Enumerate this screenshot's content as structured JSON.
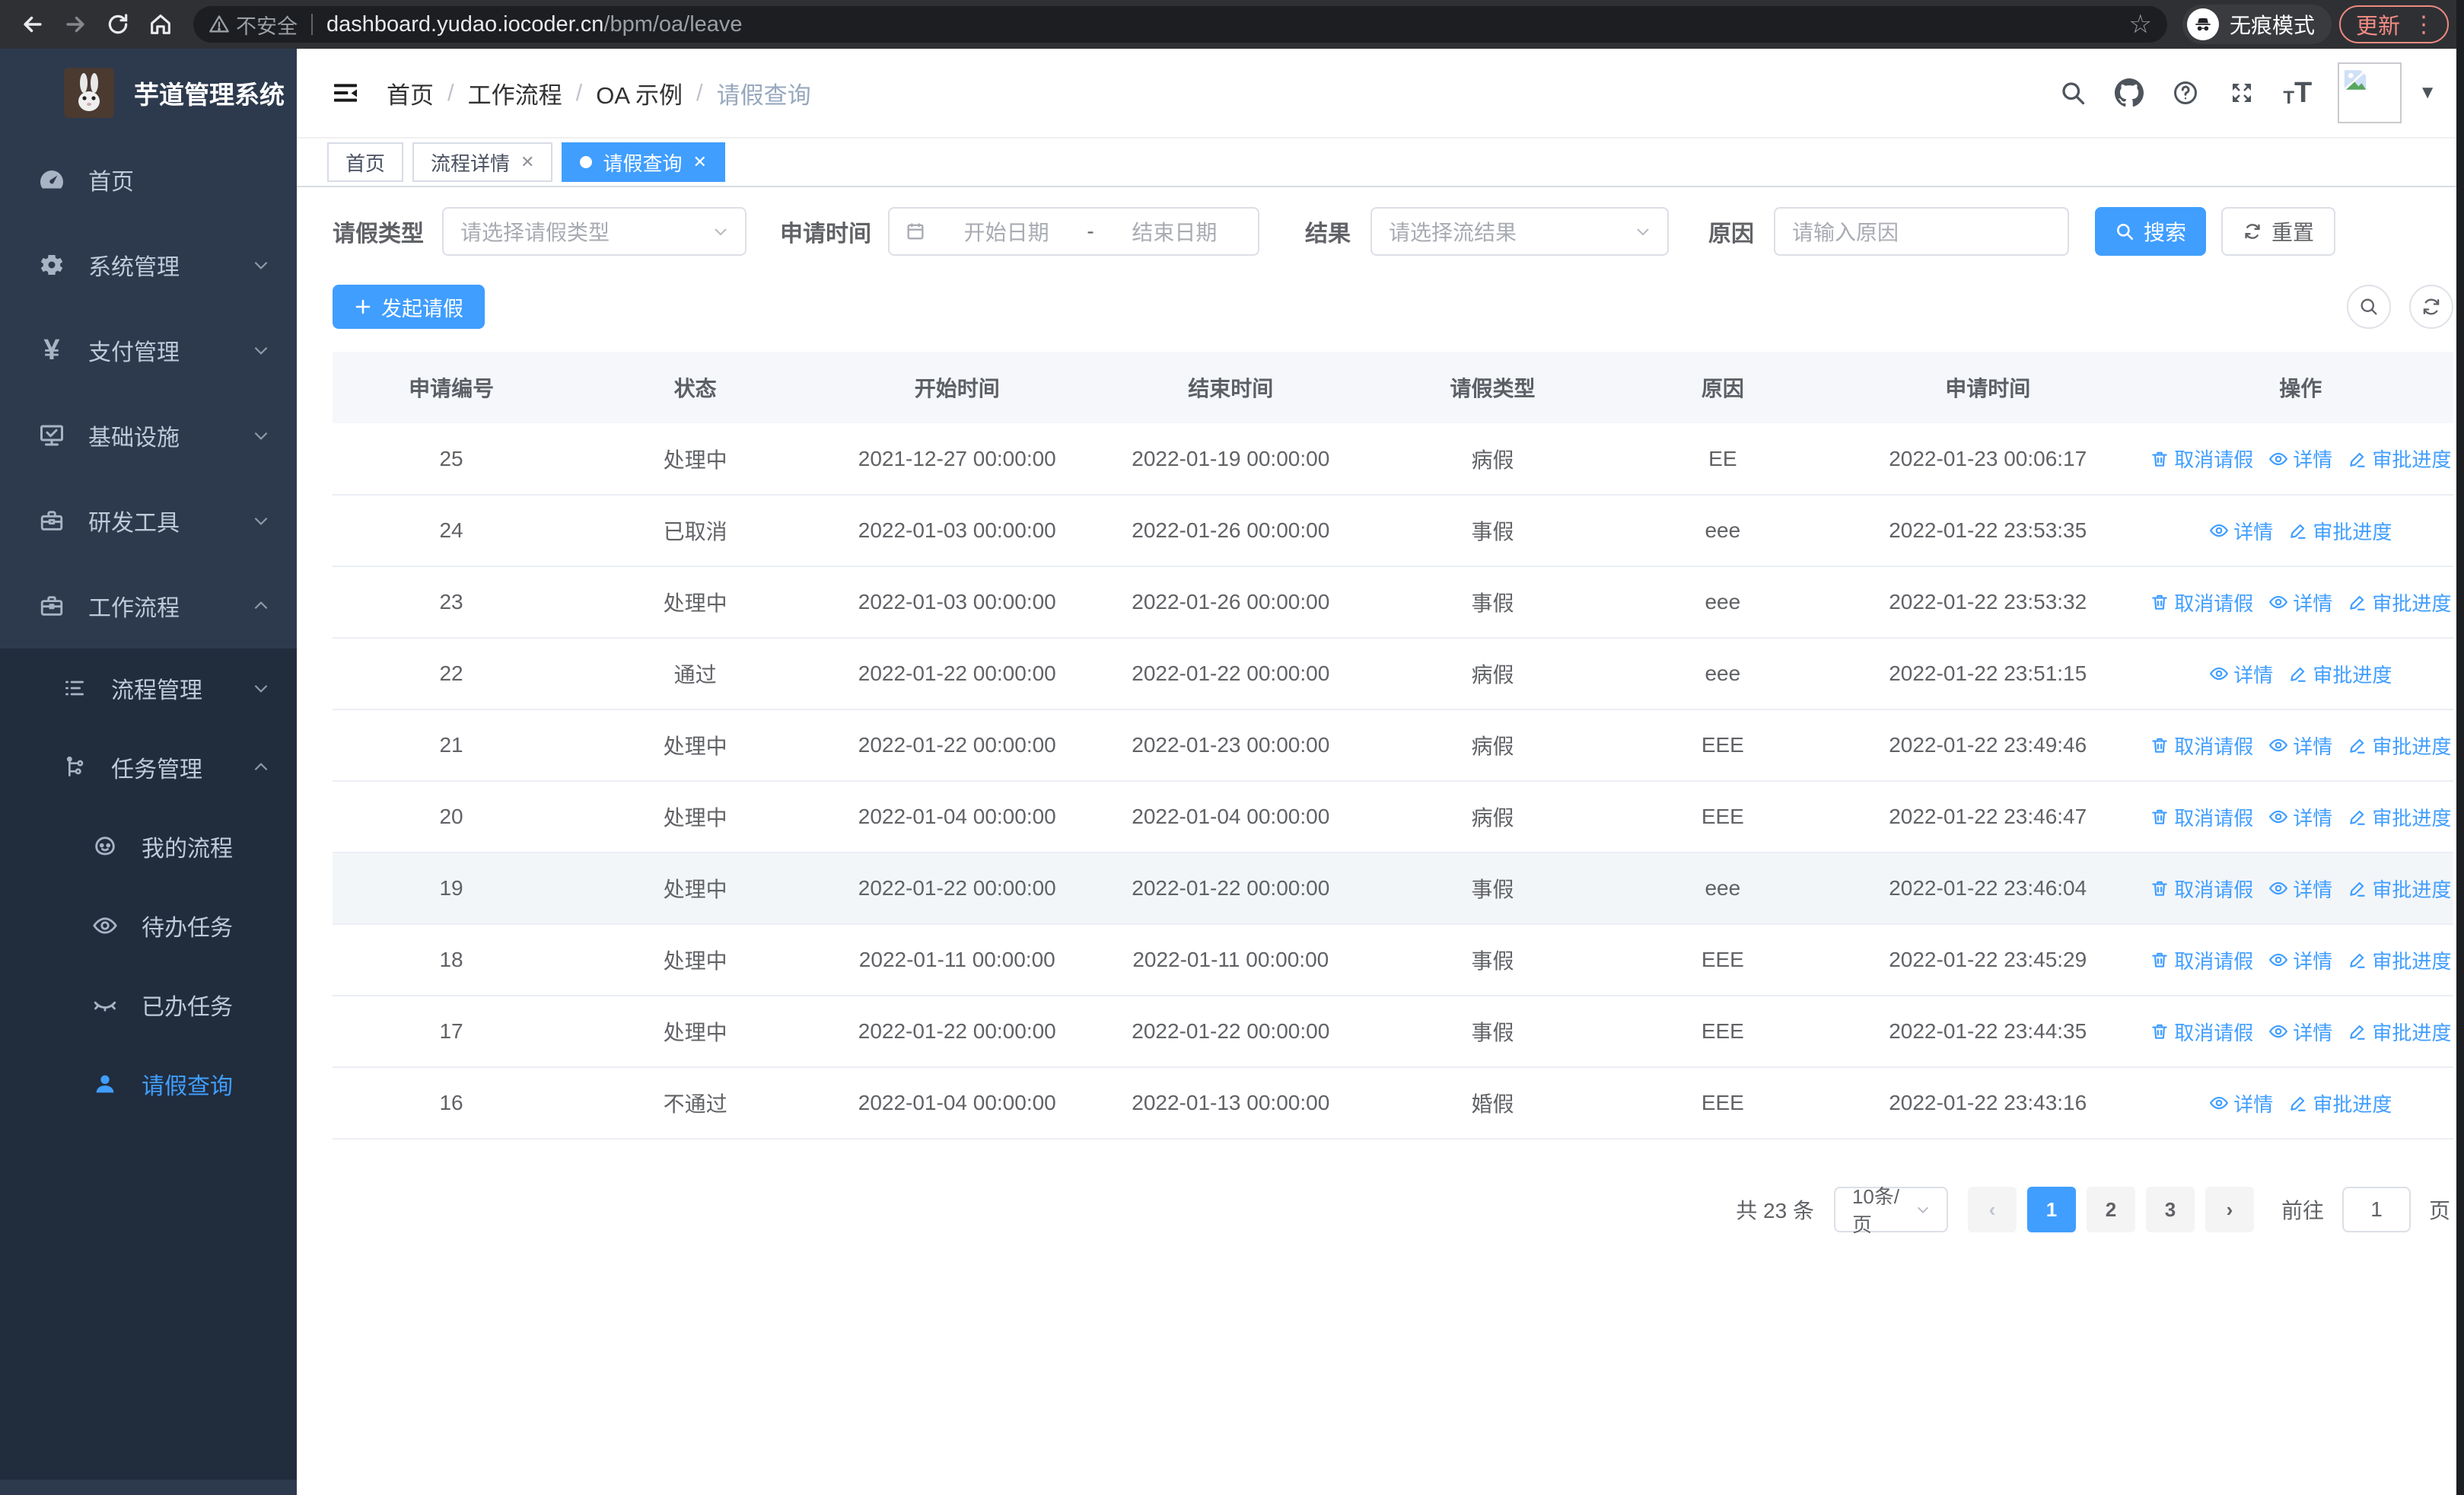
{
  "browser": {
    "security_label": "不安全",
    "url_host": "dashboard.yudao.iocoder.cn",
    "url_path": "/bpm/oa/leave",
    "incognito_label": "无痕模式",
    "update_label": "更新"
  },
  "sidebar": {
    "title": "芋道管理系统",
    "items": [
      {
        "label": "首页"
      },
      {
        "label": "系统管理"
      },
      {
        "label": "支付管理"
      },
      {
        "label": "基础设施"
      },
      {
        "label": "研发工具"
      },
      {
        "label": "工作流程"
      }
    ],
    "submenu": [
      {
        "label": "流程管理"
      },
      {
        "label": "任务管理"
      }
    ],
    "task_items": [
      {
        "label": "我的流程"
      },
      {
        "label": "待办任务"
      },
      {
        "label": "已办任务"
      },
      {
        "label": "请假查询"
      }
    ]
  },
  "header": {
    "breadcrumb": [
      "首页",
      "工作流程",
      "OA 示例",
      "请假查询"
    ]
  },
  "tabs": [
    {
      "label": "首页"
    },
    {
      "label": "流程详情"
    },
    {
      "label": "请假查询"
    }
  ],
  "filters": {
    "leave_type_label": "请假类型",
    "leave_type_placeholder": "请选择请假类型",
    "apply_time_label": "申请时间",
    "start_placeholder": "开始日期",
    "range_separator": "-",
    "end_placeholder": "结束日期",
    "result_label": "结果",
    "result_placeholder": "请选择流结果",
    "reason_label": "原因",
    "reason_placeholder": "请输入原因",
    "search_label": "搜索",
    "reset_label": "重置"
  },
  "toolbar": {
    "create_label": "发起请假"
  },
  "table": {
    "columns": [
      "申请编号",
      "状态",
      "开始时间",
      "结束时间",
      "请假类型",
      "原因",
      "申请时间",
      "操作"
    ],
    "action_labels": {
      "cancel": "取消请假",
      "detail": "详情",
      "progress": "审批进度"
    },
    "rows": [
      {
        "id": "25",
        "status": "处理中",
        "start": "2021-12-27 00:00:00",
        "end": "2022-01-19 00:00:00",
        "type": "病假",
        "reason": "EE",
        "apply_time": "2022-01-23 00:06:17",
        "actions": [
          "cancel",
          "detail",
          "progress"
        ]
      },
      {
        "id": "24",
        "status": "已取消",
        "start": "2022-01-03 00:00:00",
        "end": "2022-01-26 00:00:00",
        "type": "事假",
        "reason": "eee",
        "apply_time": "2022-01-22 23:53:35",
        "actions": [
          "detail",
          "progress"
        ]
      },
      {
        "id": "23",
        "status": "处理中",
        "start": "2022-01-03 00:00:00",
        "end": "2022-01-26 00:00:00",
        "type": "事假",
        "reason": "eee",
        "apply_time": "2022-01-22 23:53:32",
        "actions": [
          "cancel",
          "detail",
          "progress"
        ]
      },
      {
        "id": "22",
        "status": "通过",
        "start": "2022-01-22 00:00:00",
        "end": "2022-01-22 00:00:00",
        "type": "病假",
        "reason": "eee",
        "apply_time": "2022-01-22 23:51:15",
        "actions": [
          "detail",
          "progress"
        ]
      },
      {
        "id": "21",
        "status": "处理中",
        "start": "2022-01-22 00:00:00",
        "end": "2022-01-23 00:00:00",
        "type": "病假",
        "reason": "EEE",
        "apply_time": "2022-01-22 23:49:46",
        "actions": [
          "cancel",
          "detail",
          "progress"
        ]
      },
      {
        "id": "20",
        "status": "处理中",
        "start": "2022-01-04 00:00:00",
        "end": "2022-01-04 00:00:00",
        "type": "病假",
        "reason": "EEE",
        "apply_time": "2022-01-22 23:46:47",
        "actions": [
          "cancel",
          "detail",
          "progress"
        ]
      },
      {
        "id": "19",
        "status": "处理中",
        "start": "2022-01-22 00:00:00",
        "end": "2022-01-22 00:00:00",
        "type": "事假",
        "reason": "eee",
        "apply_time": "2022-01-22 23:46:04",
        "actions": [
          "cancel",
          "detail",
          "progress"
        ]
      },
      {
        "id": "18",
        "status": "处理中",
        "start": "2022-01-11 00:00:00",
        "end": "2022-01-11 00:00:00",
        "type": "事假",
        "reason": "EEE",
        "apply_time": "2022-01-22 23:45:29",
        "actions": [
          "cancel",
          "detail",
          "progress"
        ]
      },
      {
        "id": "17",
        "status": "处理中",
        "start": "2022-01-22 00:00:00",
        "end": "2022-01-22 00:00:00",
        "type": "事假",
        "reason": "EEE",
        "apply_time": "2022-01-22 23:44:35",
        "actions": [
          "cancel",
          "detail",
          "progress"
        ]
      },
      {
        "id": "16",
        "status": "不通过",
        "start": "2022-01-04 00:00:00",
        "end": "2022-01-13 00:00:00",
        "type": "婚假",
        "reason": "EEE",
        "apply_time": "2022-01-22 23:43:16",
        "actions": [
          "detail",
          "progress"
        ]
      }
    ]
  },
  "pagination": {
    "total_label": "共 23 条",
    "page_size": "10条/页",
    "pages": [
      "1",
      "2",
      "3"
    ],
    "active_page": "1",
    "goto_label": "前往",
    "goto_value": "1",
    "page_suffix": "页"
  },
  "colors": {
    "accent": "#409eff",
    "sidebar": "#2d3a4e",
    "submenu": "#212c3d"
  }
}
